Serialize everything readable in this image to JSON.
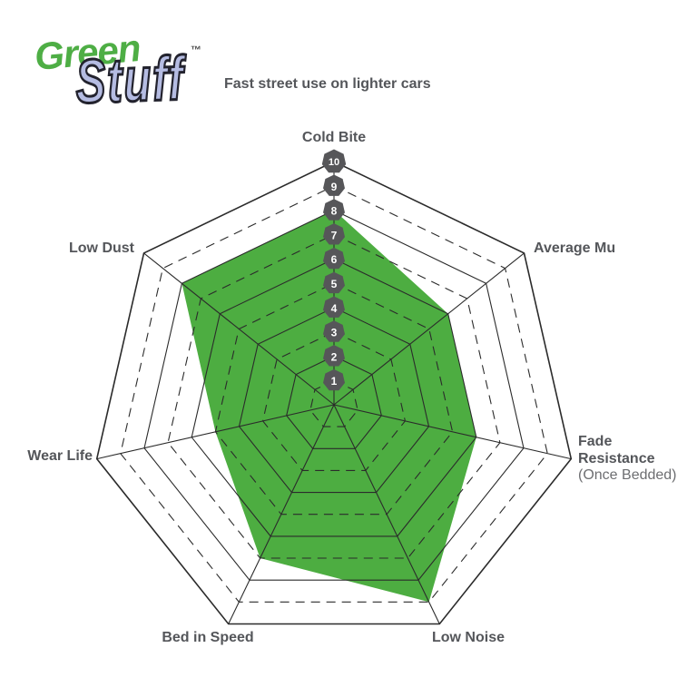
{
  "header": {
    "logo": {
      "green": "Green",
      "stuff": "Stuff",
      "trademark": "™"
    },
    "subtitle": "Fast street use on lighter cars"
  },
  "chart_data": {
    "type": "radar",
    "title": "Fast street use on lighter cars",
    "categories": [
      "Cold Bite",
      "Average Mu",
      "Fade Resistance",
      "Low Noise",
      "Bed in Speed",
      "Wear Life",
      "Low Dust"
    ],
    "sublabels": {
      "fade_resistance": "(Once Bedded)"
    },
    "values": [
      8,
      6,
      6,
      9,
      7,
      5,
      8
    ],
    "axis_range": [
      0,
      10
    ],
    "ticks": [
      1,
      2,
      3,
      4,
      5,
      6,
      7,
      8,
      9,
      10
    ],
    "grid": {
      "rings": 10,
      "even_rings": "solid",
      "odd_rings": "dashed",
      "spokes": "solid"
    },
    "legend_position": "none",
    "colors": {
      "fill": "#4DAD41",
      "grid": "#2B2B2B",
      "badge": "#565659",
      "badge_text": "#FFFFFF",
      "label": "#54565A",
      "sublabel": "#6D6E71",
      "logo_green": "#4EAE45",
      "logo_stuff_fill": "#B5BCE2",
      "logo_stuff_outline": "#23232E"
    }
  }
}
